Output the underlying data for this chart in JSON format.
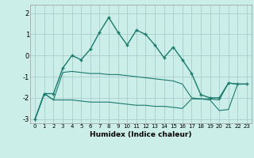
{
  "xlabel": "Humidex (Indice chaleur)",
  "background_color": "#cceee8",
  "grid_color": "#aacccc",
  "line_color": "#1a7a6e",
  "x": [
    0,
    1,
    2,
    3,
    4,
    5,
    6,
    7,
    8,
    9,
    10,
    11,
    12,
    13,
    14,
    15,
    16,
    17,
    18,
    19,
    20,
    21,
    22,
    23
  ],
  "series1": [
    -3.0,
    -1.8,
    -1.8,
    -0.6,
    0.0,
    -0.2,
    0.3,
    1.1,
    1.8,
    1.1,
    0.5,
    1.2,
    1.0,
    0.5,
    -0.1,
    0.4,
    -0.2,
    -0.85,
    -1.85,
    -2.0,
    -2.0,
    -1.3,
    -1.35,
    -1.35
  ],
  "series2": [
    -3.0,
    -1.8,
    -2.1,
    -0.8,
    -0.75,
    -0.8,
    -0.85,
    -0.85,
    -0.9,
    -0.9,
    -0.95,
    -1.0,
    -1.05,
    -1.1,
    -1.15,
    -1.2,
    -1.35,
    -2.0,
    -2.05,
    -2.05,
    -2.1,
    -1.3,
    -1.35,
    -1.35
  ],
  "series3": [
    -3.0,
    -1.8,
    -2.1,
    -2.1,
    -2.1,
    -2.15,
    -2.2,
    -2.2,
    -2.2,
    -2.25,
    -2.3,
    -2.35,
    -2.35,
    -2.4,
    -2.4,
    -2.45,
    -2.5,
    -2.05,
    -2.05,
    -2.1,
    -2.6,
    -2.55,
    -1.35,
    -1.35
  ],
  "ylim": [
    -3.2,
    2.4
  ],
  "xlim": [
    -0.5,
    23.5
  ],
  "yticks": [
    -3,
    -2,
    -1,
    0,
    1,
    2
  ],
  "xticks": [
    0,
    1,
    2,
    3,
    4,
    5,
    6,
    7,
    8,
    9,
    10,
    11,
    12,
    13,
    14,
    15,
    16,
    17,
    18,
    19,
    20,
    21,
    22,
    23
  ]
}
